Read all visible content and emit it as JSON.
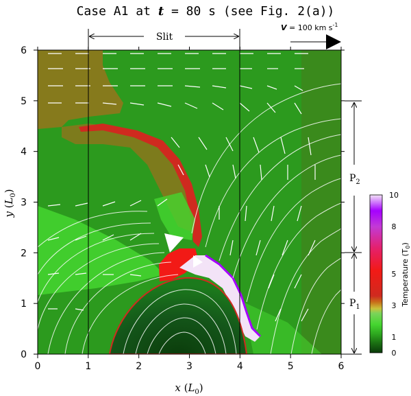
{
  "chart_data": {
    "type": "heatmap",
    "title": "Case A1 at t = 80 s (see Fig. 2(a))",
    "xlabel": "x (L0)",
    "ylabel": "y (L0)",
    "xlim": [
      0,
      6
    ],
    "ylim": [
      0,
      6
    ],
    "x_ticks": [
      "0",
      "1",
      "2",
      "3",
      "4",
      "5",
      "6"
    ],
    "y_ticks": [
      "0",
      "1",
      "2",
      "3",
      "4",
      "5",
      "6"
    ],
    "colorbar": {
      "label": "Temperature (T0)",
      "range": [
        0,
        10
      ],
      "ticks": [
        "0",
        "1",
        "3",
        "5",
        "8",
        "10"
      ],
      "colors": [
        "#0a3a0a",
        "#1a6e12",
        "#2ea81f",
        "#45d630",
        "#7bd35a",
        "#c9c23a",
        "#c8701a",
        "#cf2a1f",
        "#f21a16",
        "#e5206a",
        "#c23ad6",
        "#a500ff",
        "#f3e3f7"
      ]
    },
    "slit": {
      "label": "Slit",
      "x_range": [
        1,
        4
      ]
    },
    "velocity_reference": {
      "label": "V = 100 km s-1",
      "value": 100,
      "unit": "km s-1"
    },
    "regions": [
      {
        "label": "P2",
        "y_range": [
          2,
          5
        ]
      },
      {
        "label": "P1",
        "y_range": [
          0,
          2
        ]
      }
    ]
  },
  "labels": {
    "title_prefix": "Case A1 at ",
    "title_t": "t",
    "title_suffix": " = 80 s (see Fig. 2(a))",
    "xlabel_var": "x",
    "xlabel_unit": "L",
    "xlabel_sub": "0",
    "ylabel_var": "y",
    "ylabel_unit": "L",
    "ylabel_sub": "0",
    "cbar_label_main": "Temperature (T",
    "cbar_label_sub": "0",
    "cbar_label_end": ")",
    "v_var": "V",
    "v_eq": " = 100 km s",
    "v_exp": "-1",
    "p2_main": "P",
    "p2_sub": "2",
    "p1_main": "P",
    "p1_sub": "1",
    "slit": "Slit"
  }
}
